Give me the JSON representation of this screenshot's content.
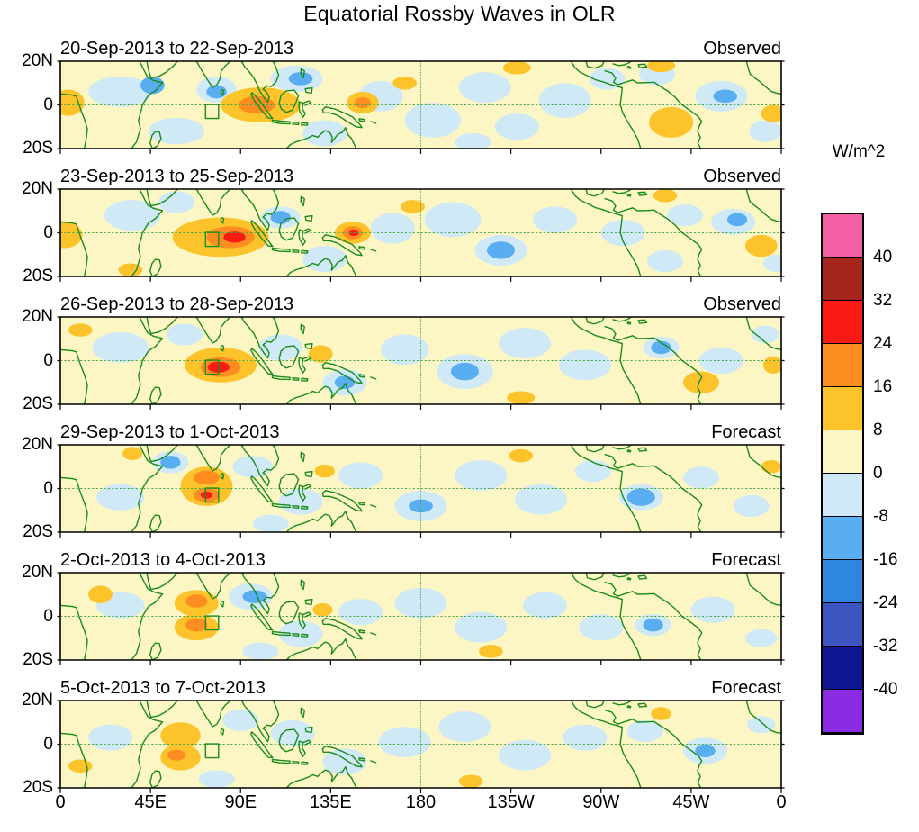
{
  "title": "Equatorial Rossby Waves in OLR",
  "colorbar": {
    "unit_label": "W/m^2",
    "tick_labels": [
      "40",
      "32",
      "24",
      "16",
      "8",
      "0",
      "-8",
      "-16",
      "-24",
      "-32",
      "-40"
    ]
  },
  "x_axis": {
    "tick_labels": [
      "0",
      "45E",
      "90E",
      "135E",
      "180",
      "135W",
      "90W",
      "45W",
      "0"
    ]
  },
  "y_axis": {
    "tick_labels": [
      "20N",
      "0",
      "20S"
    ]
  },
  "chart_data": {
    "type": "heatmap",
    "title": "Equatorial Rossby Waves in OLR",
    "units": "W/m^2",
    "x_range_deg_lon": [
      0,
      360
    ],
    "y_range_deg_lat": [
      -20,
      20
    ],
    "x_ticks": [
      "0",
      "45E",
      "90E",
      "135E",
      "180",
      "135W",
      "90W",
      "45W",
      "0"
    ],
    "y_ticks": [
      "20N",
      "0",
      "20S"
    ],
    "contour_levels": [
      -40,
      -32,
      -24,
      -16,
      -8,
      0,
      8,
      16,
      24,
      32,
      40
    ],
    "colorbar_colors_low_to_high": [
      "#8a2be2",
      "#0d1590",
      "#3c55c0",
      "#2e86e0",
      "#58aef0",
      "#cfeaf6",
      "#fbf6c3",
      "#fcc32b",
      "#fd8d20",
      "#fa1b14",
      "#a6261e",
      "#f45fa5"
    ],
    "coast_color": "#1a8c1a",
    "grid_color": "#4aa84a",
    "box_region": {
      "lon_min": 72.5,
      "lat_min": -6.2,
      "lon_max": 79,
      "lat_max": 0.2
    },
    "panels": [
      {
        "title": "20-Sep-2013 to 22-Sep-2013",
        "tag": "Observed",
        "anomalies": [
          [
            30,
            6,
            16,
            7,
            -4
          ],
          [
            58,
            -12,
            14,
            6,
            -4
          ],
          [
            78,
            7,
            10,
            6,
            -4
          ],
          [
            118,
            12,
            13,
            6,
            -4
          ],
          [
            132,
            -13,
            11,
            6,
            -4
          ],
          [
            160,
            4,
            11,
            7,
            -4
          ],
          [
            186,
            -7,
            14,
            8,
            -4
          ],
          [
            212,
            8,
            13,
            7,
            -4
          ],
          [
            228,
            -10,
            11,
            6,
            -4
          ],
          [
            252,
            2,
            13,
            8,
            -4
          ],
          [
            273,
            12,
            9,
            5,
            -4
          ],
          [
            298,
            14,
            9,
            5,
            -4
          ],
          [
            330,
            4,
            13,
            7,
            -4
          ],
          [
            352,
            -12,
            8,
            5,
            -4
          ],
          [
            206,
            -17,
            9,
            4,
            -4
          ],
          [
            46,
            9,
            6,
            4,
            -12
          ],
          [
            120,
            12,
            6,
            3,
            -12
          ],
          [
            332,
            4,
            6,
            3,
            -12
          ],
          [
            78,
            6,
            5,
            3,
            -12
          ],
          [
            4,
            1,
            8,
            6,
            12
          ],
          [
            100,
            0,
            20,
            8,
            12
          ],
          [
            151,
            1,
            8,
            5,
            12
          ],
          [
            172,
            10,
            6,
            3,
            12
          ],
          [
            305,
            -8,
            11,
            7,
            12
          ],
          [
            356,
            -4,
            6,
            4,
            12
          ],
          [
            300,
            18,
            7,
            3,
            12
          ],
          [
            228,
            17,
            7,
            3,
            12
          ],
          [
            98,
            0,
            9,
            4,
            20
          ],
          [
            151,
            1,
            4,
            2.5,
            20
          ]
        ]
      },
      {
        "title": "23-Sep-2013 to 25-Sep-2013",
        "tag": "Observed",
        "anomalies": [
          [
            36,
            8,
            14,
            7,
            -4
          ],
          [
            58,
            14,
            9,
            5,
            -4
          ],
          [
            110,
            7,
            10,
            5,
            -4
          ],
          [
            132,
            -12,
            11,
            6,
            -4
          ],
          [
            166,
            2,
            11,
            7,
            -4
          ],
          [
            196,
            6,
            14,
            8,
            -4
          ],
          [
            220,
            -8,
            13,
            7,
            -4
          ],
          [
            247,
            6,
            11,
            6,
            -4
          ],
          [
            281,
            0,
            11,
            6,
            -4
          ],
          [
            302,
            -13,
            9,
            5,
            -4
          ],
          [
            312,
            8,
            9,
            5,
            -4
          ],
          [
            336,
            5,
            11,
            6,
            -4
          ],
          [
            357,
            -14,
            6,
            4,
            -4
          ],
          [
            220,
            -8,
            7,
            4,
            -12
          ],
          [
            338,
            6,
            5,
            3,
            -12
          ],
          [
            110,
            7,
            5,
            3,
            -12
          ],
          [
            2,
            -1,
            9,
            6,
            12
          ],
          [
            80,
            -2,
            24,
            9,
            12
          ],
          [
            146,
            0,
            9,
            5,
            12
          ],
          [
            176,
            12,
            6,
            3,
            12
          ],
          [
            350,
            -6,
            8,
            5,
            12
          ],
          [
            302,
            17,
            6,
            3,
            12
          ],
          [
            35,
            -17,
            6,
            3,
            12
          ],
          [
            85,
            -2,
            12,
            5,
            20
          ],
          [
            146,
            0,
            5,
            3,
            20
          ],
          [
            87,
            -2,
            5.5,
            2.5,
            28
          ],
          [
            146.5,
            0,
            2.5,
            1.5,
            28
          ]
        ]
      },
      {
        "title": "26-Sep-2013 to 28-Sep-2013",
        "tag": "Observed",
        "anomalies": [
          [
            30,
            6,
            14,
            7,
            -4
          ],
          [
            62,
            12,
            9,
            5,
            -4
          ],
          [
            110,
            6,
            11,
            6,
            -4
          ],
          [
            142,
            -10,
            11,
            6,
            -4
          ],
          [
            172,
            5,
            12,
            7,
            -4
          ],
          [
            202,
            -5,
            14,
            8,
            -4
          ],
          [
            232,
            8,
            13,
            7,
            -4
          ],
          [
            262,
            -2,
            13,
            7,
            -4
          ],
          [
            300,
            6,
            9,
            5,
            -4
          ],
          [
            330,
            0,
            11,
            6,
            -4
          ],
          [
            352,
            12,
            7,
            4,
            -4
          ],
          [
            300,
            6,
            5,
            3,
            -12
          ],
          [
            142,
            -10,
            5,
            3,
            -12
          ],
          [
            202,
            -5,
            7,
            4,
            -12
          ],
          [
            80,
            -2,
            18,
            8,
            12
          ],
          [
            130,
            3,
            6,
            4,
            12
          ],
          [
            230,
            -17,
            7,
            3,
            12
          ],
          [
            320,
            -10,
            9,
            5,
            12
          ],
          [
            356,
            -2,
            5,
            4,
            12
          ],
          [
            10,
            14,
            6,
            3,
            12
          ],
          [
            80,
            -3,
            10,
            4.5,
            20
          ],
          [
            79,
            -3,
            5.5,
            2.5,
            28
          ]
        ]
      },
      {
        "title": "29-Sep-2013 to 1-Oct-2013",
        "tag": "Forecast",
        "anomalies": [
          [
            30,
            -4,
            12,
            6,
            -4
          ],
          [
            55,
            12,
            9,
            5,
            -4
          ],
          [
            96,
            10,
            10,
            5,
            -4
          ],
          [
            120,
            -6,
            11,
            6,
            -4
          ],
          [
            150,
            6,
            11,
            6,
            -4
          ],
          [
            180,
            -8,
            13,
            7,
            -4
          ],
          [
            210,
            6,
            13,
            7,
            -4
          ],
          [
            240,
            -5,
            13,
            7,
            -4
          ],
          [
            266,
            8,
            9,
            5,
            -4
          ],
          [
            290,
            -4,
            11,
            6,
            -4
          ],
          [
            320,
            5,
            9,
            5,
            -4
          ],
          [
            345,
            -8,
            9,
            5,
            -4
          ],
          [
            105,
            -16,
            9,
            4,
            -4
          ],
          [
            290,
            -4,
            7,
            4,
            -12
          ],
          [
            55,
            12,
            5,
            3,
            -12
          ],
          [
            180,
            -8,
            6,
            3,
            -12
          ],
          [
            73,
            1,
            13,
            9,
            12
          ],
          [
            132,
            8,
            5,
            3,
            12
          ],
          [
            36,
            16,
            5,
            3,
            12
          ],
          [
            355,
            10,
            5,
            3,
            12
          ],
          [
            230,
            15,
            6,
            3,
            12
          ],
          [
            73,
            5,
            6.5,
            3.2,
            20
          ],
          [
            73,
            -3,
            6.5,
            3.2,
            20
          ],
          [
            73,
            -3,
            3,
            1.6,
            28
          ]
        ]
      },
      {
        "title": "2-Oct-2013 to 4-Oct-2013",
        "tag": "Forecast",
        "anomalies": [
          [
            30,
            5,
            12,
            6,
            -4
          ],
          [
            95,
            9,
            11,
            6,
            -4
          ],
          [
            120,
            -8,
            11,
            6,
            -4
          ],
          [
            150,
            2,
            11,
            6,
            -4
          ],
          [
            180,
            6,
            13,
            7,
            -4
          ],
          [
            210,
            -5,
            13,
            7,
            -4
          ],
          [
            242,
            5,
            11,
            6,
            -4
          ],
          [
            270,
            -5,
            11,
            6,
            -4
          ],
          [
            296,
            -4,
            9,
            5,
            -4
          ],
          [
            326,
            3,
            11,
            6,
            -4
          ],
          [
            350,
            -10,
            8,
            4,
            -4
          ],
          [
            100,
            -16,
            9,
            4,
            -4
          ],
          [
            97,
            9,
            6,
            3,
            -12
          ],
          [
            296,
            -4,
            5,
            3,
            -12
          ],
          [
            68,
            6,
            11,
            6,
            12
          ],
          [
            68,
            -5,
            11,
            6,
            12
          ],
          [
            20,
            10,
            6,
            4,
            12
          ],
          [
            131,
            3,
            5,
            3,
            12
          ],
          [
            215,
            -16,
            6,
            3,
            12
          ],
          [
            68,
            7,
            5.5,
            3,
            20
          ],
          [
            68,
            -4,
            5.5,
            3,
            20
          ]
        ]
      },
      {
        "title": "5-Oct-2013 to 7-Oct-2013",
        "tag": "Forecast",
        "anomalies": [
          [
            25,
            3,
            11,
            6,
            -4
          ],
          [
            90,
            11,
            9,
            5,
            -4
          ],
          [
            116,
            5,
            11,
            6,
            -4
          ],
          [
            142,
            -8,
            11,
            6,
            -4
          ],
          [
            172,
            1,
            13,
            7,
            -4
          ],
          [
            202,
            8,
            13,
            7,
            -4
          ],
          [
            232,
            -5,
            13,
            7,
            -4
          ],
          [
            262,
            3,
            11,
            6,
            -4
          ],
          [
            292,
            6,
            9,
            5,
            -4
          ],
          [
            322,
            -3,
            11,
            6,
            -4
          ],
          [
            350,
            9,
            7,
            4,
            -4
          ],
          [
            78,
            -16,
            9,
            4,
            -4
          ],
          [
            322,
            -3,
            5,
            3,
            -12
          ],
          [
            60,
            4,
            10,
            6,
            12
          ],
          [
            60,
            -6,
            10,
            6,
            12
          ],
          [
            205,
            -17,
            6,
            3,
            12
          ],
          [
            10,
            -10,
            6,
            3,
            12
          ],
          [
            300,
            14,
            5,
            3,
            12
          ],
          [
            58,
            -5,
            4.5,
            2.5,
            20
          ]
        ]
      }
    ]
  }
}
